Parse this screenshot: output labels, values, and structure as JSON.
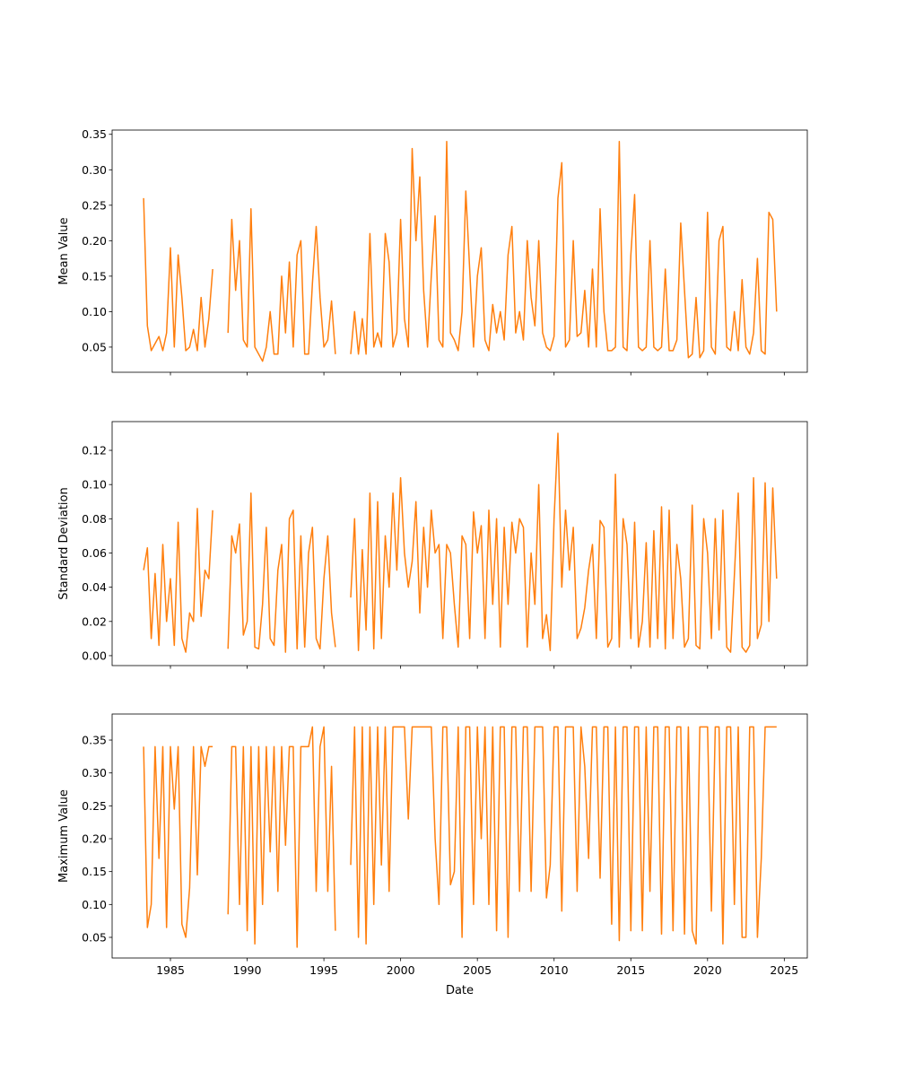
{
  "chart_data": [
    {
      "type": "line",
      "title": "",
      "xlabel": "",
      "ylabel": "Mean Value",
      "xlim": [
        1981.2,
        2026.5
      ],
      "ylim": [
        0.0145,
        0.356
      ],
      "grid": false,
      "xticks": [
        1985,
        1990,
        1995,
        2000,
        2005,
        2010,
        2015,
        2020,
        2025
      ],
      "show_xtick_labels": false,
      "yticks": [
        0.05,
        0.1,
        0.15,
        0.2,
        0.25,
        0.3,
        0.35
      ],
      "ytick_labels": [
        "0.05",
        "0.10",
        "0.15",
        "0.20",
        "0.25",
        "0.30",
        "0.35"
      ],
      "x_start": 1983.25,
      "x_step": 0.25,
      "series": [
        {
          "name": "Mean Value",
          "color": "#ff7f0e",
          "values": [
            0.26,
            0.08,
            0.045,
            0.055,
            0.065,
            0.045,
            0.07,
            0.19,
            0.05,
            0.18,
            0.12,
            0.045,
            0.05,
            0.075,
            0.045,
            0.12,
            0.05,
            0.09,
            0.16,
            null,
            null,
            null,
            0.07,
            0.23,
            0.13,
            0.2,
            0.06,
            0.05,
            0.245,
            0.05,
            0.04,
            0.03,
            0.05,
            0.1,
            0.04,
            0.04,
            0.15,
            0.07,
            0.17,
            0.05,
            0.18,
            0.2,
            0.04,
            0.04,
            0.14,
            0.22,
            0.12,
            0.05,
            0.06,
            0.115,
            0.04,
            null,
            null,
            null,
            0.04,
            0.1,
            0.04,
            0.09,
            0.04,
            0.21,
            0.05,
            0.07,
            0.05,
            0.21,
            0.17,
            0.05,
            0.07,
            0.23,
            0.09,
            0.05,
            0.33,
            0.2,
            0.29,
            0.13,
            0.05,
            0.15,
            0.235,
            0.06,
            0.05,
            0.34,
            0.07,
            0.06,
            0.045,
            0.1,
            0.27,
            0.16,
            0.05,
            0.15,
            0.19,
            0.06,
            0.045,
            0.11,
            0.07,
            0.1,
            0.06,
            0.18,
            0.22,
            0.07,
            0.1,
            0.06,
            0.2,
            0.12,
            0.08,
            0.2,
            0.07,
            0.05,
            0.045,
            0.065,
            0.26,
            0.31,
            0.05,
            0.06,
            0.2,
            0.065,
            0.07,
            0.13,
            0.05,
            0.16,
            0.05,
            0.245,
            0.1,
            0.045,
            0.045,
            0.05,
            0.34,
            0.05,
            0.045,
            0.18,
            0.265,
            0.05,
            0.045,
            0.05,
            0.2,
            0.05,
            0.045,
            0.05,
            0.16,
            0.045,
            0.045,
            0.06,
            0.225,
            0.13,
            0.035,
            0.04,
            0.12,
            0.035,
            0.045,
            0.24,
            0.05,
            0.04,
            0.2,
            0.22,
            0.05,
            0.045,
            0.1,
            0.045,
            0.145,
            0.05,
            0.04,
            0.07,
            0.175,
            0.045,
            0.04,
            0.24,
            0.23,
            0.1
          ]
        }
      ]
    },
    {
      "type": "line",
      "title": "",
      "xlabel": "",
      "ylabel": "Standard Deviation",
      "xlim": [
        1981.2,
        2026.5
      ],
      "ylim": [
        -0.0058,
        0.1368
      ],
      "grid": false,
      "xticks": [
        1985,
        1990,
        1995,
        2000,
        2005,
        2010,
        2015,
        2020,
        2025
      ],
      "show_xtick_labels": false,
      "yticks": [
        0.0,
        0.02,
        0.04,
        0.06,
        0.08,
        0.1,
        0.12
      ],
      "ytick_labels": [
        "0.00",
        "0.02",
        "0.04",
        "0.06",
        "0.08",
        "0.10",
        "0.12"
      ],
      "x_start": 1983.25,
      "x_step": 0.25,
      "series": [
        {
          "name": "Standard Deviation",
          "color": "#ff7f0e",
          "values": [
            0.05,
            0.063,
            0.01,
            0.048,
            0.006,
            0.065,
            0.02,
            0.045,
            0.006,
            0.078,
            0.01,
            0.002,
            0.025,
            0.02,
            0.086,
            0.023,
            0.05,
            0.045,
            0.085,
            null,
            null,
            null,
            0.004,
            0.07,
            0.06,
            0.077,
            0.012,
            0.02,
            0.095,
            0.005,
            0.004,
            0.03,
            0.075,
            0.01,
            0.006,
            0.05,
            0.065,
            0.002,
            0.08,
            0.085,
            0.004,
            0.07,
            0.005,
            0.06,
            0.075,
            0.01,
            0.004,
            0.045,
            0.07,
            0.025,
            0.005,
            null,
            null,
            null,
            0.034,
            0.08,
            0.003,
            0.062,
            0.015,
            0.095,
            0.004,
            0.09,
            0.01,
            0.07,
            0.04,
            0.095,
            0.05,
            0.104,
            0.06,
            0.04,
            0.055,
            0.09,
            0.025,
            0.075,
            0.04,
            0.085,
            0.06,
            0.065,
            0.01,
            0.065,
            0.06,
            0.03,
            0.005,
            0.07,
            0.065,
            0.01,
            0.084,
            0.06,
            0.076,
            0.01,
            0.085,
            0.03,
            0.08,
            0.005,
            0.075,
            0.03,
            0.078,
            0.06,
            0.08,
            0.075,
            0.005,
            0.06,
            0.03,
            0.1,
            0.01,
            0.024,
            0.003,
            0.08,
            0.13,
            0.04,
            0.085,
            0.05,
            0.075,
            0.01,
            0.016,
            0.028,
            0.05,
            0.065,
            0.01,
            0.079,
            0.075,
            0.005,
            0.01,
            0.106,
            0.005,
            0.08,
            0.065,
            0.01,
            0.078,
            0.005,
            0.02,
            0.066,
            0.005,
            0.073,
            0.01,
            0.087,
            0.004,
            0.085,
            0.01,
            0.065,
            0.045,
            0.005,
            0.01,
            0.088,
            0.006,
            0.004,
            0.08,
            0.06,
            0.01,
            0.08,
            0.015,
            0.085,
            0.005,
            0.002,
            0.047,
            0.095,
            0.005,
            0.002,
            0.006,
            0.104,
            0.01,
            0.018,
            0.101,
            0.02,
            0.098,
            0.045
          ]
        }
      ]
    },
    {
      "type": "line",
      "title": "",
      "xlabel": "Date",
      "ylabel": "Maximum Value",
      "xlim": [
        1981.2,
        2026.5
      ],
      "ylim": [
        0.0186,
        0.3896
      ],
      "grid": false,
      "xticks": [
        1985,
        1990,
        1995,
        2000,
        2005,
        2010,
        2015,
        2020,
        2025
      ],
      "xtick_labels": [
        "1985",
        "1990",
        "1995",
        "2000",
        "2005",
        "2010",
        "2015",
        "2020",
        "2025"
      ],
      "show_xtick_labels": true,
      "yticks": [
        0.05,
        0.1,
        0.15,
        0.2,
        0.25,
        0.3,
        0.35
      ],
      "ytick_labels": [
        "0.05",
        "0.10",
        "0.15",
        "0.20",
        "0.25",
        "0.30",
        "0.35"
      ],
      "x_start": 1983.25,
      "x_step": 0.25,
      "series": [
        {
          "name": "Maximum Value",
          "color": "#ff7f0e",
          "values": [
            0.34,
            0.065,
            0.1,
            0.34,
            0.17,
            0.34,
            0.065,
            0.34,
            0.245,
            0.34,
            0.07,
            0.05,
            0.125,
            0.34,
            0.145,
            0.34,
            0.31,
            0.34,
            0.34,
            null,
            null,
            null,
            0.085,
            0.34,
            0.34,
            0.1,
            0.34,
            0.06,
            0.34,
            0.04,
            0.34,
            0.1,
            0.34,
            0.18,
            0.34,
            0.12,
            0.34,
            0.19,
            0.34,
            0.34,
            0.035,
            0.34,
            0.34,
            0.34,
            0.37,
            0.12,
            0.34,
            0.37,
            0.12,
            0.31,
            0.06,
            null,
            null,
            null,
            0.16,
            0.37,
            0.05,
            0.37,
            0.04,
            0.37,
            0.1,
            0.37,
            0.16,
            0.37,
            0.12,
            0.37,
            0.37,
            0.37,
            0.37,
            0.23,
            0.37,
            0.37,
            0.37,
            0.37,
            0.37,
            0.37,
            0.2,
            0.1,
            0.37,
            0.37,
            0.13,
            0.15,
            0.37,
            0.05,
            0.37,
            0.37,
            0.1,
            0.37,
            0.2,
            0.37,
            0.1,
            0.37,
            0.06,
            0.37,
            0.37,
            0.05,
            0.37,
            0.37,
            0.12,
            0.37,
            0.37,
            0.12,
            0.37,
            0.37,
            0.37,
            0.11,
            0.16,
            0.37,
            0.37,
            0.09,
            0.37,
            0.37,
            0.37,
            0.12,
            0.37,
            0.31,
            0.17,
            0.37,
            0.37,
            0.14,
            0.37,
            0.37,
            0.07,
            0.37,
            0.045,
            0.37,
            0.37,
            0.06,
            0.37,
            0.37,
            0.06,
            0.37,
            0.12,
            0.37,
            0.37,
            0.055,
            0.37,
            0.37,
            0.06,
            0.37,
            0.37,
            0.055,
            0.37,
            0.06,
            0.04,
            0.37,
            0.37,
            0.37,
            0.09,
            0.37,
            0.37,
            0.04,
            0.37,
            0.37,
            0.1,
            0.37,
            0.05,
            0.05,
            0.37,
            0.37,
            0.05,
            0.17,
            0.37,
            0.37,
            0.37,
            0.37
          ]
        }
      ]
    }
  ]
}
